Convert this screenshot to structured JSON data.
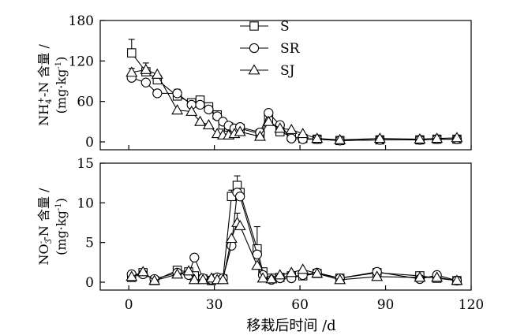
{
  "chart_data": [
    {
      "type": "line",
      "panel": "top",
      "ylabel_parts": [
        "NH",
        "4",
        "+",
        "-N 含量 /"
      ],
      "yunit_parts": [
        "(mg·kg",
        "-1",
        ")"
      ],
      "ylim": [
        0,
        180
      ],
      "yticks": [
        0,
        60,
        120,
        180
      ],
      "legend_position": "top-center",
      "series": [
        {
          "name": "S",
          "marker": "square",
          "x": [
            1,
            6,
            10,
            17,
            22,
            25,
            28,
            31,
            33,
            35,
            37,
            39,
            46,
            49,
            53,
            57,
            61,
            66,
            74,
            88,
            102,
            108,
            115
          ],
          "y": [
            132,
            104,
            92,
            68,
            58,
            62,
            52,
            40,
            25,
            22,
            18,
            20,
            12,
            34,
            15,
            8,
            5,
            4,
            2,
            3,
            3,
            4,
            4
          ],
          "err": [
            20,
            0,
            0,
            0,
            0,
            0,
            0,
            0,
            0,
            0,
            0,
            0,
            0,
            0,
            0,
            0,
            0,
            0,
            0,
            0,
            0,
            0,
            0
          ]
        },
        {
          "name": "SR",
          "marker": "circle",
          "x": [
            1,
            6,
            10,
            17,
            22,
            25,
            28,
            31,
            33,
            35,
            37,
            39,
            46,
            49,
            53,
            57,
            61,
            66,
            74,
            88,
            102,
            108,
            115
          ],
          "y": [
            95,
            88,
            72,
            72,
            55,
            55,
            48,
            38,
            30,
            24,
            20,
            22,
            14,
            43,
            25,
            5,
            4,
            4,
            2,
            3,
            3,
            4,
            4
          ],
          "err": [
            5,
            0,
            0,
            6,
            5,
            0,
            0,
            0,
            0,
            0,
            0,
            0,
            0,
            0,
            0,
            0,
            0,
            0,
            0,
            0,
            0,
            0,
            0
          ]
        },
        {
          "name": "SJ",
          "marker": "triangle",
          "x": [
            1,
            6,
            10,
            17,
            22,
            25,
            28,
            31,
            33,
            35,
            37,
            39,
            46,
            49,
            53,
            57,
            61,
            66,
            74,
            88,
            102,
            108,
            115
          ],
          "y": [
            103,
            107,
            100,
            47,
            45,
            30,
            25,
            12,
            10,
            10,
            12,
            15,
            8,
            30,
            20,
            18,
            12,
            5,
            3,
            5,
            4,
            5,
            6
          ],
          "err": [
            6,
            10,
            0,
            0,
            0,
            0,
            0,
            0,
            0,
            0,
            0,
            0,
            0,
            0,
            0,
            0,
            0,
            0,
            0,
            0,
            0,
            0,
            0
          ]
        }
      ]
    },
    {
      "type": "line",
      "panel": "bottom",
      "ylabel_parts": [
        "NO",
        "3",
        "-",
        "-N 含量 /"
      ],
      "yunit_parts": [
        "(mg·kg",
        "-1",
        ")"
      ],
      "ylim": [
        0,
        15
      ],
      "yticks": [
        0,
        5,
        10,
        15
      ],
      "xlabel": "移栽后时间 /d",
      "xlim": [
        -10,
        120
      ],
      "xticks": [
        0,
        30,
        60,
        90,
        120
      ],
      "series": [
        {
          "name": "S",
          "marker": "square",
          "x": [
            1,
            5,
            9,
            17,
            21,
            23,
            26,
            29,
            31,
            33,
            36,
            38,
            39,
            45,
            47,
            50,
            53,
            57,
            61,
            66,
            74,
            87,
            102,
            108,
            115
          ],
          "y": [
            0.6,
            1.2,
            0.2,
            1.5,
            1.3,
            0.8,
            0.4,
            0.2,
            0.5,
            0.4,
            10.8,
            12.2,
            11.3,
            4.2,
            1.3,
            0.5,
            0.6,
            0.8,
            0.8,
            1.1,
            0.5,
            1.2,
            0.8,
            0.5,
            0.2
          ],
          "err": [
            0,
            0,
            0,
            0,
            0,
            0,
            0,
            0,
            0,
            0,
            0.8,
            1.2,
            0,
            2.8,
            0,
            0,
            0,
            0,
            0,
            0,
            0,
            0,
            0,
            0,
            0
          ]
        },
        {
          "name": "SR",
          "marker": "circle",
          "x": [
            1,
            5,
            9,
            17,
            21,
            23,
            26,
            29,
            31,
            33,
            36,
            38,
            39,
            45,
            47,
            50,
            53,
            57,
            61,
            66,
            74,
            87,
            102,
            108,
            115
          ],
          "y": [
            1.0,
            1.0,
            0.4,
            1.2,
            0.9,
            3.1,
            0.5,
            0.3,
            0.6,
            0.5,
            4.6,
            11.3,
            10.8,
            3.5,
            0.9,
            0.3,
            0.5,
            0.5,
            0.9,
            1.2,
            0.5,
            1.3,
            0.4,
            0.9,
            0.2
          ],
          "err": [
            0,
            0,
            0,
            0,
            0,
            0,
            0,
            0,
            0,
            0,
            0,
            0,
            0,
            0,
            0,
            0,
            0,
            0,
            0,
            0,
            0,
            0,
            0,
            0,
            0
          ]
        },
        {
          "name": "SJ",
          "marker": "triangle",
          "x": [
            1,
            5,
            9,
            17,
            21,
            23,
            26,
            29,
            31,
            33,
            36,
            38,
            39,
            45,
            47,
            50,
            53,
            57,
            61,
            66,
            74,
            87,
            102,
            108,
            115
          ],
          "y": [
            0.7,
            1.3,
            0.2,
            1.0,
            1.4,
            0.3,
            0.3,
            0.5,
            0.3,
            0.3,
            5.5,
            7.5,
            7.1,
            2.1,
            0.5,
            0.4,
            0.9,
            1.2,
            1.6,
            1.1,
            0.3,
            0.7,
            0.6,
            0.6,
            0.2
          ],
          "err": [
            0,
            0,
            0,
            0,
            0,
            0,
            0,
            0,
            0,
            0,
            0,
            1.2,
            0,
            0,
            0,
            0,
            0,
            0,
            0,
            0,
            0,
            0,
            0,
            0,
            0
          ]
        }
      ]
    }
  ]
}
